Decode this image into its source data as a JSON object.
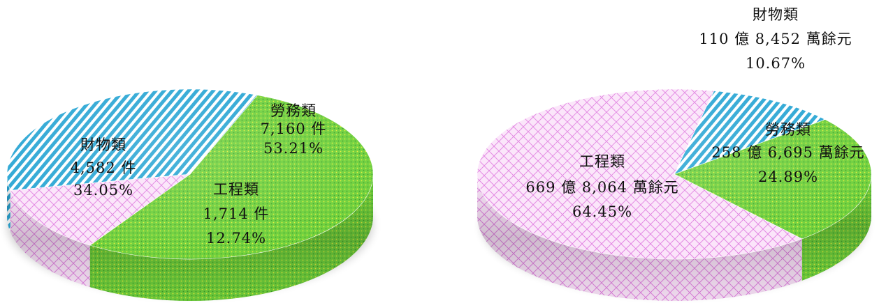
{
  "chart_data": [
    {
      "type": "pie",
      "slices": [
        {
          "name": "勞務類",
          "value": 7160,
          "value_label": "7,160 件",
          "percent": 53.21,
          "percent_label": "53.21%",
          "color": "#6ccf3a"
        },
        {
          "name": "工程類",
          "value": 1714,
          "value_label": "1,714 件",
          "percent": 12.74,
          "percent_label": "12.74%",
          "color": "#f6cff4"
        },
        {
          "name": "財物類",
          "value": 4582,
          "value_label": "4,582 件",
          "percent": 34.05,
          "percent_label": "34.05%",
          "color": "#2aa6d4"
        }
      ]
    },
    {
      "type": "pie",
      "slices": [
        {
          "name": "財物類",
          "value_label": "110 億 8,452 萬餘元",
          "percent": 10.67,
          "percent_label": "10.67%",
          "color": "#2aa6d4"
        },
        {
          "name": "勞務類",
          "value_label": "258 億 6,695 萬餘元",
          "percent": 24.89,
          "percent_label": "24.89%",
          "color": "#6ccf3a"
        },
        {
          "name": "工程類",
          "value_label": "669 億 8,064 萬餘元",
          "percent": 64.45,
          "percent_label": "64.45%",
          "color": "#f6cff4"
        }
      ]
    }
  ]
}
